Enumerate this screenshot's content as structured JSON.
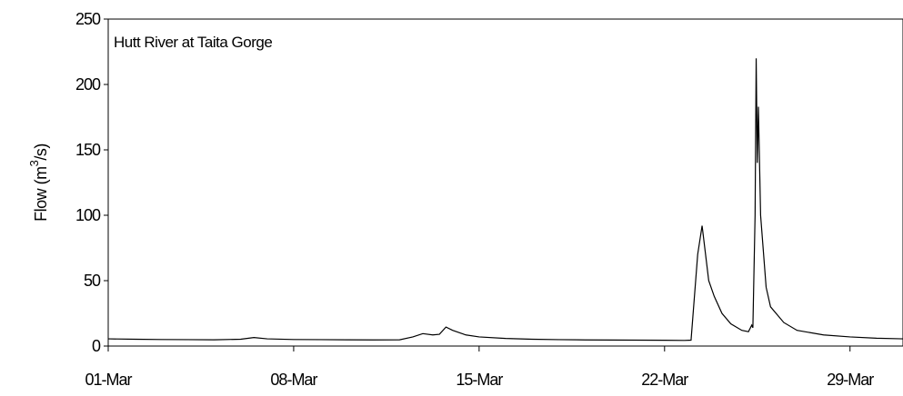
{
  "chart_data": {
    "type": "line",
    "title": "Hutt River at Taita Gorge",
    "ylabel_prefix": "Flow (m",
    "ylabel_sup": "3",
    "ylabel_suffix": "/s)",
    "xlabel": "",
    "ylim": [
      0,
      250
    ],
    "yticks": [
      0,
      50,
      100,
      150,
      200,
      250
    ],
    "xlim": [
      "2002-03-01",
      "2002-03-31"
    ],
    "xticks": [
      {
        "date": "2002-03-01",
        "label": "01-Mar"
      },
      {
        "date": "2002-03-08",
        "label": "08-Mar"
      },
      {
        "date": "2002-03-15",
        "label": "15-Mar"
      },
      {
        "date": "2002-03-22",
        "label": "22-Mar"
      },
      {
        "date": "2002-03-29",
        "label": "29-Mar"
      }
    ],
    "grid": false,
    "legend": "none",
    "series": [
      {
        "points": [
          [
            "2002-03-01 00:00",
            5.5
          ],
          [
            "2002-03-02 00:00",
            5.2
          ],
          [
            "2002-03-03 00:00",
            5.0
          ],
          [
            "2002-03-04 00:00",
            4.9
          ],
          [
            "2002-03-05 00:00",
            4.8
          ],
          [
            "2002-03-06 00:00",
            5.2
          ],
          [
            "2002-03-06 12:00",
            6.5
          ],
          [
            "2002-03-07 00:00",
            5.5
          ],
          [
            "2002-03-08 00:00",
            5.0
          ],
          [
            "2002-03-09 00:00",
            4.9
          ],
          [
            "2002-03-10 00:00",
            4.8
          ],
          [
            "2002-03-11 00:00",
            4.7
          ],
          [
            "2002-03-12 00:00",
            4.8
          ],
          [
            "2002-03-12 12:00",
            7.0
          ],
          [
            "2002-03-12 21:00",
            9.5
          ],
          [
            "2002-03-13 06:00",
            8.5
          ],
          [
            "2002-03-13 12:00",
            9.0
          ],
          [
            "2002-03-13 18:00",
            14.5
          ],
          [
            "2002-03-14 00:00",
            12.0
          ],
          [
            "2002-03-14 12:00",
            8.5
          ],
          [
            "2002-03-15 00:00",
            7.0
          ],
          [
            "2002-03-16 00:00",
            5.8
          ],
          [
            "2002-03-17 00:00",
            5.2
          ],
          [
            "2002-03-18 00:00",
            4.9
          ],
          [
            "2002-03-19 00:00",
            4.7
          ],
          [
            "2002-03-20 00:00",
            4.6
          ],
          [
            "2002-03-21 00:00",
            4.5
          ],
          [
            "2002-03-22 00:00",
            4.4
          ],
          [
            "2002-03-22 18:00",
            4.3
          ],
          [
            "2002-03-23 00:00",
            4.5
          ],
          [
            "2002-03-23 06:00",
            70.0
          ],
          [
            "2002-03-23 10:00",
            92.0
          ],
          [
            "2002-03-23 16:00",
            50.0
          ],
          [
            "2002-03-23 21:00",
            38.0
          ],
          [
            "2002-03-24 04:00",
            25.0
          ],
          [
            "2002-03-24 12:00",
            17.0
          ],
          [
            "2002-03-24 22:00",
            12.0
          ],
          [
            "2002-03-25 04:00",
            11.0
          ],
          [
            "2002-03-25 07:00",
            16.0
          ],
          [
            "2002-03-25 08:00",
            14.0
          ],
          [
            "2002-03-25 10:00",
            100.0
          ],
          [
            "2002-03-25 11:00",
            220.0
          ],
          [
            "2002-03-25 12:00",
            140.0
          ],
          [
            "2002-03-25 13:00",
            183.0
          ],
          [
            "2002-03-25 15:00",
            100.0
          ],
          [
            "2002-03-25 20:00",
            45.0
          ],
          [
            "2002-03-26 00:00",
            30.0
          ],
          [
            "2002-03-26 12:00",
            18.0
          ],
          [
            "2002-03-27 00:00",
            12.0
          ],
          [
            "2002-03-28 00:00",
            8.5
          ],
          [
            "2002-03-29 00:00",
            7.0
          ],
          [
            "2002-03-30 00:00",
            6.0
          ],
          [
            "2002-03-31 00:00",
            5.5
          ]
        ]
      }
    ]
  }
}
